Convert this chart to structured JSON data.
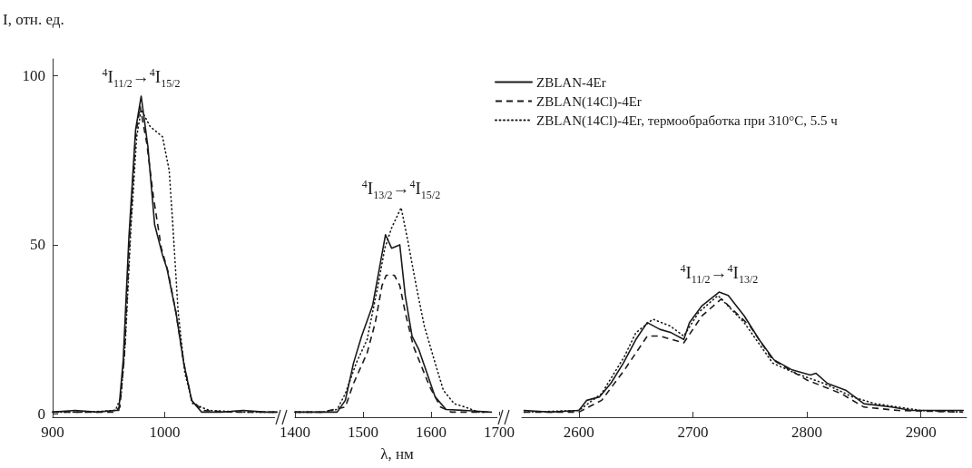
{
  "chart_data": [
    {
      "type": "line",
      "ylabel": "I, отн. ед.",
      "xlim": [
        900,
        1100
      ],
      "xticks": [
        900,
        1000
      ],
      "ylim": [
        -1,
        105
      ],
      "yticks": [
        0,
        50,
        100
      ],
      "grid": false,
      "legend": false,
      "marker": "none",
      "annotations": [
        {
          "text": "$^{4}$I$_{11/2}$→$^{4}$I$_{15/2}$",
          "x": 979,
          "y": 94
        }
      ],
      "series": [
        {
          "color": "#1a1a1a",
          "line_style": "solid",
          "x": [
            900,
            920,
            940,
            955,
            959,
            963,
            968,
            974,
            979,
            985,
            991,
            998,
            1002,
            1010,
            1017,
            1024,
            1033,
            1050,
            1070,
            1090,
            1100
          ],
          "values": [
            0.5,
            1,
            0.5,
            1,
            1,
            16,
            52,
            84,
            94,
            79,
            56,
            47,
            43,
            30,
            15,
            4,
            0.5,
            0.5,
            1,
            0.5,
            0.5
          ]
        },
        {
          "color": "#1a1a1a",
          "line_style": "dashed",
          "x": [
            900,
            930,
            955,
            960,
            964,
            969,
            974,
            978,
            984,
            990,
            997,
            1003,
            1010,
            1017,
            1024,
            1034,
            1060,
            1100
          ],
          "values": [
            0.5,
            0.5,
            0.5,
            2,
            17,
            53,
            82,
            91,
            80,
            64,
            49,
            42,
            30,
            15,
            4,
            1,
            0.5,
            0.5
          ]
        },
        {
          "color": "#1a1a1a",
          "line_style": "dotted",
          "x": [
            900,
            930,
            956,
            961,
            965,
            970,
            975,
            979,
            987,
            998,
            1004,
            1007,
            1012,
            1018,
            1025,
            1040,
            1070,
            1100
          ],
          "values": [
            0.5,
            0.5,
            1,
            5,
            22,
            56,
            82,
            90,
            85,
            82,
            72,
            57,
            30,
            12,
            3,
            1,
            0.5,
            0.5
          ]
        }
      ]
    },
    {
      "type": "line",
      "xlabel": "λ, нм",
      "xlim": [
        1400,
        1700
      ],
      "xticks": [
        1400,
        1500,
        1600,
        1700
      ],
      "ylim": [
        -1,
        100
      ],
      "yticks": [
        0,
        50,
        100
      ],
      "grid": false,
      "legend": false,
      "marker": "none",
      "tick_labels": "x",
      "annotations": [
        {
          "text": "$^{4}$I$_{13/2}$→$^{4}$I$_{15/2}$",
          "x": 1556,
          "y": 61
        }
      ],
      "series": [
        {
          "color": "#1a1a1a",
          "line_style": "solid",
          "x": [
            1400,
            1430,
            1462,
            1474,
            1486,
            1498,
            1514,
            1524,
            1533,
            1542,
            1554,
            1562,
            1572,
            1582,
            1594,
            1606,
            1622,
            1650,
            1686
          ],
          "values": [
            0.5,
            0.5,
            0.5,
            4,
            15,
            23,
            32,
            43,
            53,
            49,
            50,
            35,
            23,
            19,
            12,
            5,
            1.3,
            1,
            0.5
          ]
        },
        {
          "color": "#1a1a1a",
          "line_style": "dashed",
          "x": [
            1400,
            1440,
            1474,
            1486,
            1506,
            1518,
            1528,
            1534,
            1546,
            1554,
            1562,
            1574,
            1586,
            1598,
            1614,
            1630,
            1680
          ],
          "values": [
            0.5,
            0.5,
            2,
            9,
            18,
            27,
            38,
            41,
            41,
            38,
            30,
            20,
            14,
            8,
            2,
            0.5,
            0.5
          ]
        },
        {
          "color": "#1a1a1a",
          "line_style": "dotted",
          "x": [
            1400,
            1440,
            1462,
            1474,
            1490,
            1506,
            1522,
            1532,
            1542,
            1556,
            1566,
            1578,
            1590,
            1606,
            1618,
            1634,
            1650,
            1670,
            1690
          ],
          "values": [
            0.5,
            0.5,
            1.3,
            6,
            15,
            22,
            38,
            49,
            55,
            61,
            51,
            38,
            26,
            15,
            7,
            3,
            2,
            0.5,
            0.5
          ]
        }
      ]
    },
    {
      "type": "line",
      "xlim": [
        2550,
        2940
      ],
      "xticks": [
        2600,
        2700,
        2800,
        2900
      ],
      "ylim": [
        -1,
        100
      ],
      "yticks": [
        0,
        50,
        100
      ],
      "grid": false,
      "legend": "top",
      "marker": "none",
      "tick_labels": "x",
      "annotations": [
        {
          "text": "$^{4}$I$_{11/2}$→$^{4}$I$_{13/2}$",
          "x": 2723,
          "y": 36
        }
      ],
      "series": [
        {
          "name": "ZBLAN-4Er",
          "color": "#1a1a1a",
          "line_style": "solid",
          "x": [
            2552,
            2575,
            2600,
            2607,
            2618,
            2628,
            2639,
            2650,
            2660,
            2671,
            2681,
            2692,
            2697,
            2708,
            2723,
            2731,
            2745,
            2758,
            2771,
            2787,
            2803,
            2808,
            2818,
            2834,
            2850,
            2874,
            2892,
            2937
          ],
          "values": [
            1,
            0.5,
            1,
            4,
            5,
            9,
            15,
            22,
            27,
            25,
            24,
            22,
            27,
            32,
            36,
            35,
            29,
            22,
            16,
            13,
            11.5,
            12,
            9,
            7,
            3,
            2,
            1,
            1
          ]
        },
        {
          "name": "ZBLAN(14Cl)-4Er",
          "color": "#1a1a1a",
          "line_style": "dashed",
          "x": [
            2552,
            2600,
            2620,
            2640,
            2660,
            2671,
            2692,
            2708,
            2725,
            2750,
            2770,
            2800,
            2830,
            2850,
            2880,
            2937
          ],
          "values": [
            0.5,
            0.5,
            4,
            13,
            23,
            23,
            21,
            29,
            34,
            26,
            16,
            10,
            6,
            2,
            1,
            0.5
          ]
        },
        {
          "name": "ZBLAN(14Cl)-4Er, термообработка при 310°C, 5.5 ч",
          "color": "#1a1a1a",
          "line_style": "dotted",
          "x": [
            2552,
            2600,
            2620,
            2640,
            2650,
            2665,
            2680,
            2692,
            2705,
            2722,
            2745,
            2770,
            2790,
            2815,
            2840,
            2860,
            2900,
            2937
          ],
          "values": [
            0.5,
            1,
            6,
            17,
            24,
            28,
            26,
            23,
            30,
            35,
            27,
            15,
            12,
            9,
            5,
            3,
            1,
            0.5
          ]
        }
      ]
    }
  ]
}
